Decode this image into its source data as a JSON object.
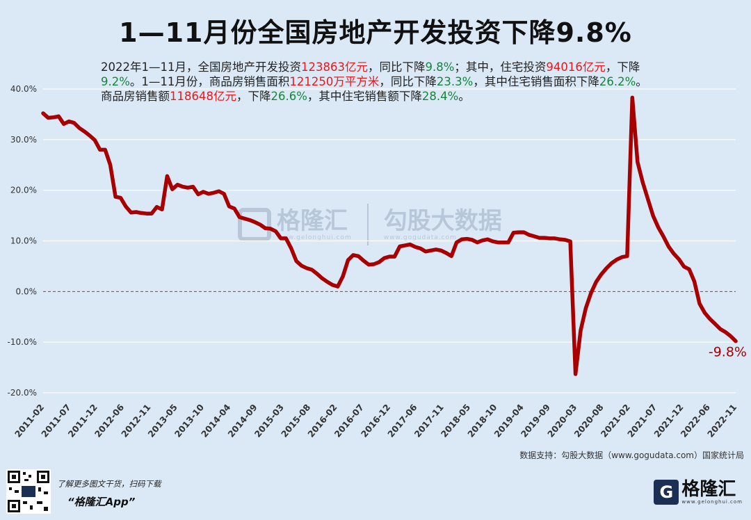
{
  "title": "1—11月份全国房地产开发投资下降9.8%",
  "summary": {
    "seg1": "2022年1—11月，全国房地产开发投资",
    "v1": "123863亿元",
    "seg2": "，同比下降",
    "v2": "9.8%",
    "seg3": "；其中，住宅投资",
    "v3": "94016亿元",
    "seg4": "，下降",
    "v4": "9.2%",
    "seg5": "。1—11月份，商品房销售面积",
    "v5": "121250万平方米",
    "seg6": "，同比下降",
    "v6": "23.3%",
    "seg7": "，其中住宅销售面积下降",
    "v7": "26.2%",
    "seg8": "。商品房销售额",
    "v8": "118648亿元",
    "seg9": "，下降",
    "v9": "26.6%",
    "seg10": "，其中住宅销售额下降",
    "v10": "28.4%",
    "seg11": "。"
  },
  "source_text": "数据支持：勾股大数据（www.gogudata.com）国家统计局",
  "promo": {
    "line1": "了解更多图文干货，扫码下载",
    "line2": "“格隆汇App”"
  },
  "logo": {
    "glyph": "G",
    "name": "格隆汇",
    "sub": "www.gelonghui.com"
  },
  "watermark": {
    "brand": "格隆汇",
    "brand_sub": "www.gelonghui.com",
    "partner": "勾股大数据",
    "partner_sub": "www.gogudata.com"
  },
  "colors": {
    "line": "#a80000",
    "zero_line": "#e41a1c",
    "background": "#dbe9f6",
    "highlight_red": "#e41a1c",
    "highlight_green": "#16853b"
  },
  "chart_data": {
    "type": "line",
    "ylim": [
      -20,
      40
    ],
    "yticks": [
      -20,
      -10,
      0,
      10,
      20,
      30,
      40
    ],
    "ytick_labels": [
      "-20.0%",
      "-10.0%",
      "0.0%",
      "10.0%",
      "20.0%",
      "30.0%",
      "40.0%"
    ],
    "xtick_labels": [
      "2011-02",
      "2011-07",
      "2011-12",
      "2012-06",
      "2012-11",
      "2013-05",
      "2013-10",
      "2014-04",
      "2014-09",
      "2015-03",
      "2015-08",
      "2016-02",
      "2016-07",
      "2016-12",
      "2017-06",
      "2017-11",
      "2018-05",
      "2018-10",
      "2019-04",
      "2019-09",
      "2020-03",
      "2020-08",
      "2021-02",
      "2021-07",
      "2021-12",
      "2022-06",
      "2022-11"
    ],
    "grid": true,
    "end_annotation": "-9.8%",
    "series": [
      {
        "values": [
          35.2,
          34.3,
          34.4,
          34.6,
          33.1,
          33.6,
          33.3,
          32.3,
          31.6,
          30.8,
          29.9,
          28.0,
          28.0,
          25.0,
          18.7,
          18.5,
          16.8,
          15.6,
          15.7,
          15.5,
          15.4,
          15.4,
          16.7,
          16.2,
          22.8,
          20.2,
          21.1,
          20.7,
          20.5,
          20.7,
          19.2,
          19.7,
          19.3,
          19.5,
          19.8,
          19.3,
          16.8,
          16.4,
          14.7,
          14.4,
          14.1,
          13.7,
          13.2,
          12.5,
          12.4,
          11.9,
          10.5,
          10.5,
          8.5,
          6.0,
          5.1,
          4.6,
          4.3,
          3.5,
          2.6,
          1.9,
          1.3,
          1.0,
          3.0,
          6.2,
          7.2,
          7.0,
          6.1,
          5.3,
          5.4,
          5.8,
          6.6,
          6.9,
          6.9,
          8.9,
          9.1,
          9.3,
          8.8,
          8.5,
          7.9,
          8.1,
          8.3,
          8.1,
          7.6,
          7.0,
          9.7,
          10.3,
          10.4,
          10.2,
          9.7,
          10.1,
          10.3,
          9.9,
          9.7,
          9.7,
          9.7,
          11.6,
          11.7,
          11.7,
          11.2,
          10.9,
          10.6,
          10.6,
          10.5,
          10.5,
          10.3,
          10.2,
          9.9,
          -16.3,
          -7.7,
          -3.3,
          -0.3,
          1.9,
          3.4,
          4.6,
          5.6,
          6.3,
          6.8,
          7.0,
          38.3,
          25.6,
          21.6,
          18.3,
          15.0,
          12.7,
          10.9,
          8.9,
          7.5,
          6.4,
          4.9,
          4.4,
          2.0,
          -2.4,
          -4.2,
          -5.4,
          -6.4,
          -7.4,
          -8.0,
          -8.8,
          -9.8
        ]
      }
    ]
  }
}
